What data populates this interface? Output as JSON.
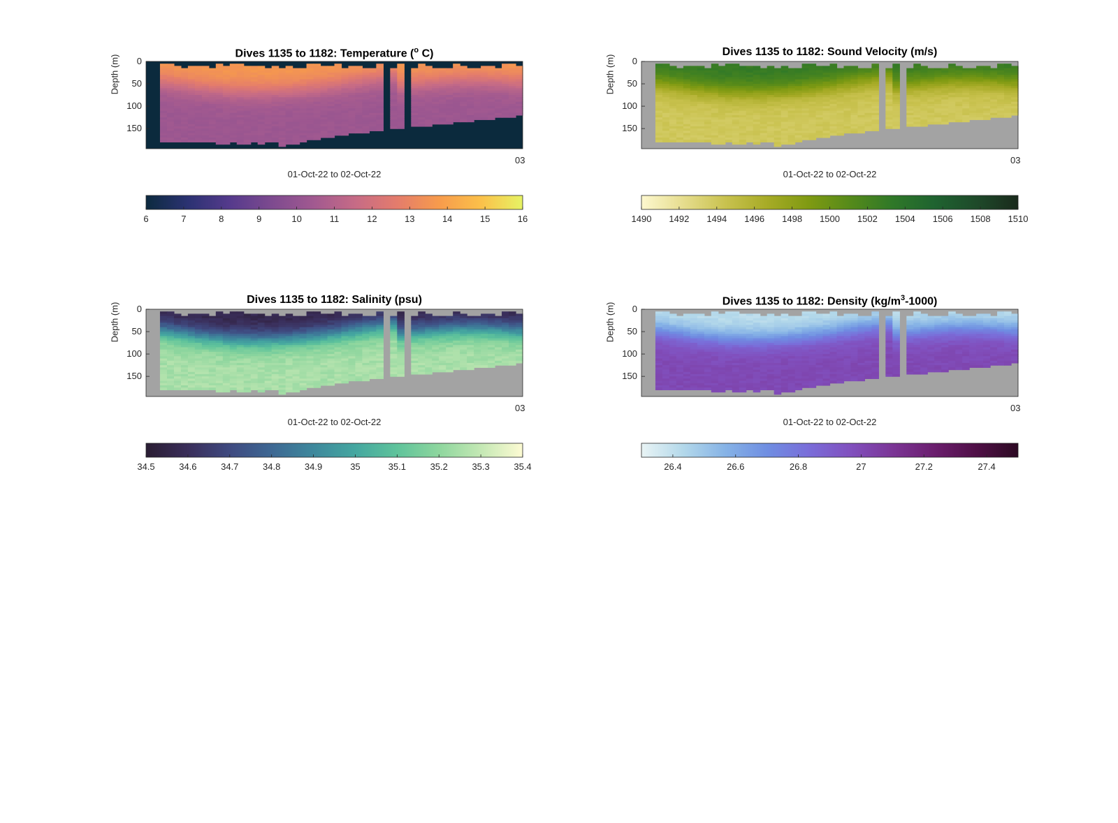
{
  "chart_data": [
    {
      "type": "heatmap",
      "key": "temperature",
      "title_main": "Dives 1135 to 1182: Temperature (",
      "title_sup": "o",
      "title_tail": " C)",
      "xlabel": "01-Oct-22 to 02-Oct-22",
      "ylabel": "Depth (m)",
      "yticks": [
        "0",
        "50",
        "100",
        "150"
      ],
      "x_end_tick": "03",
      "ylim": [
        0,
        195
      ],
      "nan_color": "#0b2a3d",
      "colormap": [
        "#0c2a3f",
        "#2b3272",
        "#553a8c",
        "#7d4a8f",
        "#a15990",
        "#c66b86",
        "#e47c6c",
        "#f79b4c",
        "#fbc04a",
        "#e6f364"
      ],
      "colorbar": {
        "range": [
          6,
          16
        ],
        "ticks": [
          "6",
          "7",
          "8",
          "9",
          "10",
          "11",
          "12",
          "13",
          "14",
          "15",
          "16"
        ]
      },
      "surface_layer_value": 13.7,
      "deep_value": 10.3
    },
    {
      "type": "heatmap",
      "key": "sound_velocity",
      "title_main": "Dives 1135 to 1182: Sound Velocity (m/s)",
      "title_sup": "",
      "title_tail": "",
      "xlabel": "01-Oct-22 to 02-Oct-22",
      "ylabel": "Depth (m)",
      "yticks": [
        "0",
        "50",
        "100",
        "150"
      ],
      "x_end_tick": "03",
      "ylim": [
        0,
        195
      ],
      "nan_color": "#a3a3a3",
      "colormap": [
        "#fdf8cf",
        "#e6dd8e",
        "#c9c24f",
        "#a7ab26",
        "#7f9a12",
        "#558a1a",
        "#2f7828",
        "#1f6330",
        "#1e4a2a",
        "#1a2a1c"
      ],
      "colorbar": {
        "range": [
          1490,
          1510
        ],
        "ticks": [
          "1490",
          "1492",
          "1494",
          "1496",
          "1498",
          "1500",
          "1502",
          "1504",
          "1506",
          "1508",
          "1510"
        ]
      },
      "surface_layer_value": 1503.2,
      "deep_value": 1494.0
    },
    {
      "type": "heatmap",
      "key": "salinity",
      "title_main": "Dives 1135 to 1182: Salinity (psu)",
      "title_sup": "",
      "title_tail": "",
      "xlabel": "01-Oct-22 to 02-Oct-22",
      "ylabel": "Depth (m)",
      "yticks": [
        "0",
        "50",
        "100",
        "150"
      ],
      "x_end_tick": "03",
      "ylim": [
        0,
        195
      ],
      "nan_color": "#a3a3a3",
      "colormap": [
        "#2a1d33",
        "#3a2e5a",
        "#3f4a80",
        "#3e6893",
        "#3e889c",
        "#45a7a0",
        "#5fc39b",
        "#8ed69e",
        "#c4e8b4",
        "#fdfbd3"
      ],
      "colorbar": {
        "range": [
          34.5,
          35.4
        ],
        "ticks": [
          "34.5",
          "34.6",
          "34.7",
          "34.8",
          "34.9",
          "35",
          "35.1",
          "35.2",
          "35.3",
          "35.4"
        ]
      },
      "surface_layer_value": 34.55,
      "deep_value": 35.25
    },
    {
      "type": "heatmap",
      "key": "density",
      "title_main": "Dives 1135 to 1182: Density (kg/m",
      "title_sup": "3",
      "title_tail": "-1000)",
      "xlabel": "01-Oct-22 to 02-Oct-22",
      "ylabel": "Depth (m)",
      "yticks": [
        "0",
        "50",
        "100",
        "150"
      ],
      "x_end_tick": "03",
      "ylim": [
        0,
        195
      ],
      "nan_color": "#a3a3a3",
      "colormap": [
        "#e9f4f5",
        "#b3d8ea",
        "#86b3e6",
        "#6f8ee2",
        "#7a6dd9",
        "#8150be",
        "#7b3596",
        "#6b1e6e",
        "#4f0f46",
        "#2d0a23"
      ],
      "colorbar": {
        "range": [
          26.3,
          27.5
        ],
        "ticks": [
          "26.4",
          "26.6",
          "26.8",
          "27",
          "27.2",
          "27.4"
        ]
      },
      "surface_layer_value": 26.4,
      "deep_value": 27.0
    }
  ]
}
